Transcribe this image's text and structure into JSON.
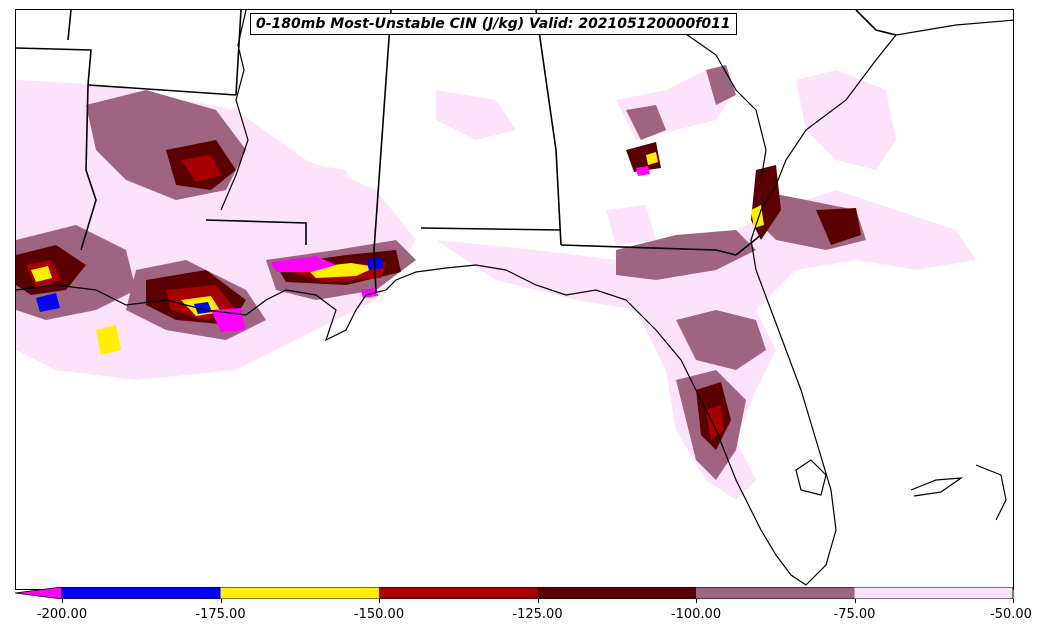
{
  "title": "0-180mb Most-Unstable CIN (J/kg) Valid: 202105120000f011",
  "colorbar": {
    "bins": [
      {
        "from": -200,
        "to": -175,
        "color": "#0000ff"
      },
      {
        "from": -175,
        "to": -150,
        "color": "#ffee00"
      },
      {
        "from": -150,
        "to": -125,
        "color": "#a80000"
      },
      {
        "from": -125,
        "to": -100,
        "color": "#5a0000"
      },
      {
        "from": -100,
        "to": -75,
        "color": "#9e6480"
      },
      {
        "from": -75,
        "to": -50,
        "color": "#fde2fb"
      }
    ],
    "under_color": "#ff00ff",
    "ticks": [
      "-200.00",
      "-175.00",
      "-150.00",
      "-125.00",
      "-100.00",
      "-75.00",
      "-50.00"
    ]
  },
  "map": {
    "region": "Gulf Coast / Southeast United States",
    "features": [
      "state-borders",
      "coastline",
      "CIN shading"
    ]
  }
}
